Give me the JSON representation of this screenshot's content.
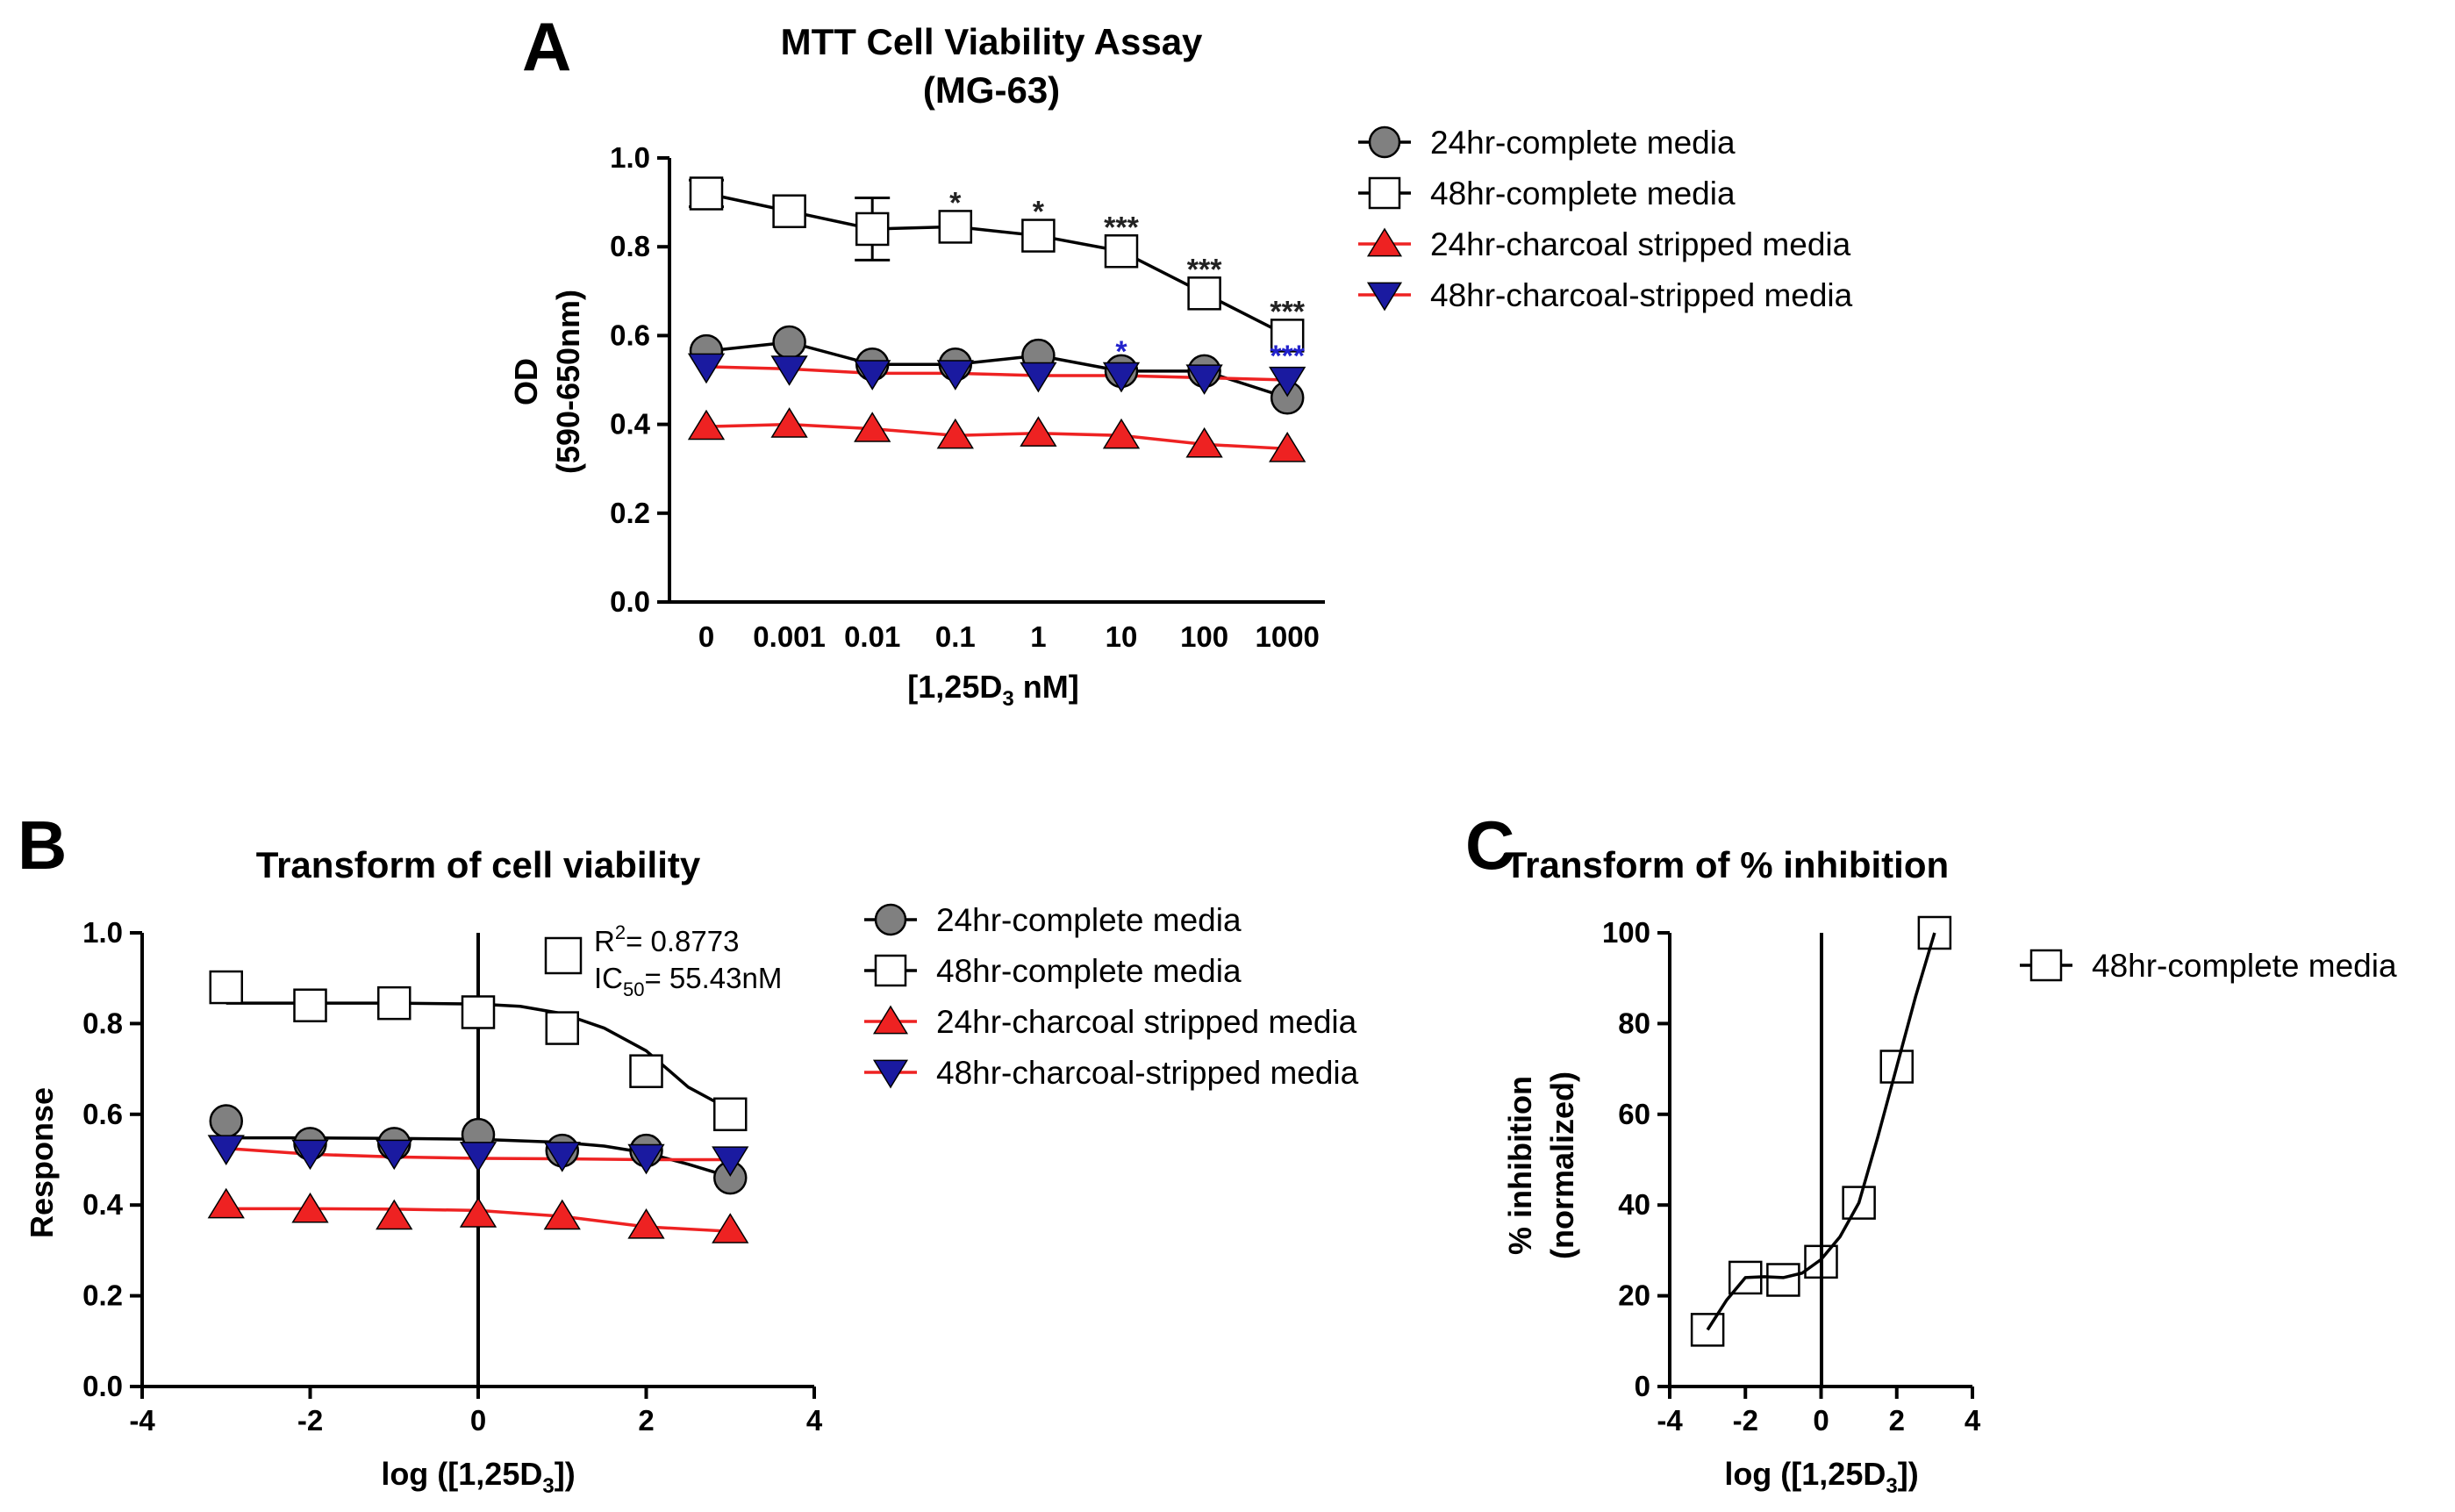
{
  "chart_data": [
    {
      "panel": "A",
      "type": "line",
      "title": "MTT Cell  Viability Assay",
      "subtitle": "(MG-63)",
      "xlabel": "[1,25D3 nM]",
      "ylabel": "OD",
      "ylabel2": "(590-650nm)",
      "categories": [
        "0",
        "0.001",
        "0.01",
        "0.1",
        "1",
        "10",
        "100",
        "1000"
      ],
      "ylim": [
        0,
        1.0
      ],
      "yticks": [
        "0.0",
        "0.2",
        "0.4",
        "0.6",
        "0.8",
        "1.0"
      ],
      "series": [
        {
          "name": "24hr-complete media",
          "marker": "circle",
          "color": "#808080",
          "line": "#000000",
          "values": [
            0.565,
            0.585,
            0.535,
            0.535,
            0.555,
            0.52,
            0.52,
            0.46
          ]
        },
        {
          "name": "48hr-complete media",
          "marker": "square",
          "color": "#ffffff",
          "line": "#000000",
          "values": [
            0.92,
            0.88,
            0.84,
            0.845,
            0.825,
            0.79,
            0.695,
            0.6
          ]
        },
        {
          "name": "24hr-charcoal stripped media",
          "marker": "triangle-up",
          "color": "#ee2222",
          "line": "#ee2222",
          "values": [
            0.395,
            0.4,
            0.39,
            0.375,
            0.38,
            0.375,
            0.355,
            0.345
          ]
        },
        {
          "name": "48hr-charcoal-stripped media",
          "marker": "triangle-down",
          "color": "#1a1aa0",
          "line": "#ee2222",
          "values": [
            0.53,
            0.525,
            0.515,
            0.515,
            0.51,
            0.51,
            0.505,
            0.5
          ]
        }
      ],
      "error_bars": [
        {
          "series": "48hr-complete media",
          "index": 0,
          "low": 0.89,
          "high": 0.95
        },
        {
          "series": "48hr-complete media",
          "index": 2,
          "low": 0.77,
          "high": 0.91
        }
      ],
      "significance": [
        {
          "index": 3,
          "label": "*",
          "color": "#222222",
          "y": 0.845
        },
        {
          "index": 4,
          "label": "*",
          "color": "#222222",
          "y": 0.825
        },
        {
          "index": 5,
          "label": "***",
          "color": "#222222",
          "y": 0.79
        },
        {
          "index": 6,
          "label": "***",
          "color": "#222222",
          "y": 0.695
        },
        {
          "index": 7,
          "label": "***",
          "color": "#222222",
          "y": 0.6
        },
        {
          "index": 5,
          "label": "*",
          "color": "#2222cc",
          "y": 0.51
        },
        {
          "index": 7,
          "label": "***",
          "color": "#2222cc",
          "y": 0.5
        }
      ],
      "legend": [
        "24hr-complete media",
        "48hr-complete media",
        "24hr-charcoal stripped media",
        "48hr-charcoal-stripped media"
      ]
    },
    {
      "panel": "B",
      "type": "scatter",
      "title": "Transform of cell viability",
      "xlabel": "log ([1,25D3])",
      "ylabel": "Response",
      "xlim": [
        -4,
        4
      ],
      "ylim": [
        0,
        1.0
      ],
      "xticks": [
        "-4",
        "-2",
        "0",
        "2",
        "4"
      ],
      "yticks": [
        "0.0",
        "0.2",
        "0.4",
        "0.6",
        "0.8",
        "1.0"
      ],
      "x": [
        -3,
        -2,
        -1,
        0,
        1,
        2,
        3
      ],
      "series": [
        {
          "name": "24hr-complete media",
          "marker": "circle",
          "color": "#808080",
          "line": "#000000",
          "values": [
            0.585,
            0.535,
            0.535,
            0.555,
            0.52,
            0.52,
            0.46
          ],
          "fit": [
            [
              -3,
              0.548
            ],
            [
              -2,
              0.548
            ],
            [
              -1,
              0.547
            ],
            [
              0,
              0.545
            ],
            [
              1,
              0.538
            ],
            [
              1.5,
              0.53
            ],
            [
              2,
              0.515
            ],
            [
              2.5,
              0.49
            ],
            [
              3,
              0.462
            ]
          ]
        },
        {
          "name": "48hr-complete media",
          "marker": "square",
          "color": "#ffffff",
          "line": "#000000",
          "values": [
            0.88,
            0.84,
            0.845,
            0.825,
            0.79,
            0.695,
            0.6
          ],
          "fit": [
            [
              -3,
              0.845
            ],
            [
              -2,
              0.845
            ],
            [
              -1,
              0.845
            ],
            [
              0,
              0.843
            ],
            [
              0.5,
              0.838
            ],
            [
              1,
              0.822
            ],
            [
              1.5,
              0.79
            ],
            [
              2,
              0.74
            ],
            [
              2.5,
              0.66
            ],
            [
              3,
              0.61
            ]
          ]
        },
        {
          "name": "24hr-charcoal stripped media",
          "marker": "triangle-up",
          "color": "#ee2222",
          "line": "#ee2222",
          "values": [
            0.4,
            0.39,
            0.375,
            0.38,
            0.375,
            0.355,
            0.345
          ],
          "fit": [
            [
              -3,
              0.392
            ],
            [
              -2,
              0.392
            ],
            [
              -1,
              0.391
            ],
            [
              0,
              0.388
            ],
            [
              1,
              0.375
            ],
            [
              2,
              0.352
            ],
            [
              3,
              0.342
            ]
          ]
        },
        {
          "name": "48hr-charcoal-stripped media",
          "marker": "triangle-down",
          "color": "#1a1aa0",
          "line": "#ee2222",
          "values": [
            0.525,
            0.515,
            0.515,
            0.51,
            0.51,
            0.505,
            0.5
          ],
          "fit": [
            [
              -3,
              0.525
            ],
            [
              -2,
              0.512
            ],
            [
              -1,
              0.506
            ],
            [
              0,
              0.503
            ],
            [
              1,
              0.502
            ],
            [
              2,
              0.5
            ],
            [
              3,
              0.5
            ]
          ]
        }
      ],
      "annotation": {
        "r2": "= 0.8773",
        "ic50": "= 55.43nM"
      },
      "legend": [
        "24hr-complete media",
        "48hr-complete media",
        "24hr-charcoal stripped media",
        "48hr-charcoal-stripped media"
      ]
    },
    {
      "panel": "C",
      "type": "scatter",
      "title": "Transform of % inhibition",
      "xlabel": "log ([1,25D3])",
      "ylabel": "% inhibition",
      "ylabel2": "(normalized)",
      "xlim": [
        -4,
        4
      ],
      "ylim": [
        0,
        100
      ],
      "xticks": [
        "-4",
        "-2",
        "0",
        "2",
        "4"
      ],
      "yticks": [
        "0",
        "20",
        "40",
        "60",
        "80",
        "100"
      ],
      "x": [
        -3,
        -2,
        -1,
        0,
        1,
        2,
        3
      ],
      "series": [
        {
          "name": "48hr-complete media",
          "marker": "square",
          "color": "#ffffff",
          "line": "#000000",
          "values": [
            12.5,
            24,
            23.5,
            27.5,
            40.5,
            70.5,
            100
          ],
          "fit": [
            [
              -3,
              12.5
            ],
            [
              -2.5,
              19
            ],
            [
              -2,
              24
            ],
            [
              -1.5,
              24.2
            ],
            [
              -1,
              24
            ],
            [
              -0.5,
              25
            ],
            [
              0,
              28
            ],
            [
              0.5,
              33
            ],
            [
              1,
              40.5
            ],
            [
              1.5,
              55
            ],
            [
              2,
              70.5
            ],
            [
              2.5,
              86
            ],
            [
              3,
              100
            ]
          ]
        }
      ],
      "legend": [
        "48hr-complete media"
      ]
    }
  ]
}
